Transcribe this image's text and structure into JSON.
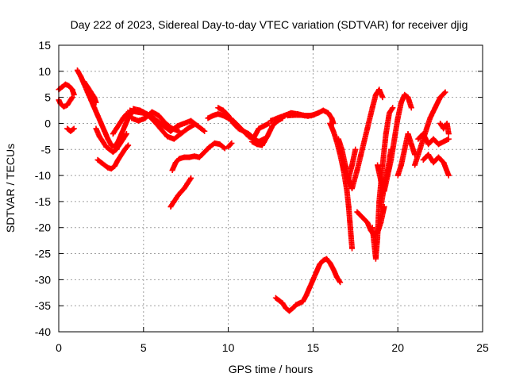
{
  "chart_data": {
    "type": "scatter",
    "title": "Day 222 of 2023, Sidereal Day-to-day VTEC variation (SDTVAR) for receiver djig",
    "xlabel": "GPS time / hours",
    "ylabel": "SDTVAR / TECUs",
    "xlim": [
      0,
      25
    ],
    "ylim": [
      -40,
      15
    ],
    "xticks": [
      0,
      5,
      10,
      15,
      20,
      25
    ],
    "yticks": [
      15,
      10,
      5,
      0,
      -5,
      -10,
      -15,
      -20,
      -25,
      -30,
      -35,
      -40
    ],
    "grid": true,
    "marker": "+",
    "color": "#ff0000",
    "series": [
      {
        "points": [
          [
            0.0,
            6.5
          ],
          [
            0.2,
            7.0
          ],
          [
            0.4,
            7.5
          ],
          [
            0.6,
            7.2
          ],
          [
            0.8,
            6.5
          ],
          [
            0.9,
            5.5
          ]
        ]
      },
      {
        "points": [
          [
            0.0,
            4.5
          ],
          [
            0.1,
            3.8
          ],
          [
            0.3,
            3.2
          ],
          [
            0.5,
            3.5
          ],
          [
            0.7,
            4.5
          ],
          [
            0.8,
            5.0
          ]
        ]
      },
      {
        "points": [
          [
            0.5,
            -1.0
          ],
          [
            0.7,
            -1.5
          ],
          [
            0.9,
            -1.0
          ]
        ]
      },
      {
        "points": [
          [
            1.1,
            10.2
          ],
          [
            1.3,
            9.0
          ],
          [
            1.5,
            7.5
          ],
          [
            1.7,
            6.0
          ],
          [
            1.9,
            4.5
          ],
          [
            2.1,
            3.0
          ],
          [
            2.3,
            1.5
          ],
          [
            2.5,
            0.0
          ],
          [
            2.7,
            -1.5
          ],
          [
            2.9,
            -3.0
          ],
          [
            3.1,
            -4.2
          ],
          [
            3.3,
            -4.5
          ],
          [
            3.5,
            -3.5
          ],
          [
            3.7,
            -2.0
          ],
          [
            3.9,
            -0.5
          ],
          [
            4.1,
            1.0
          ],
          [
            4.3,
            2.0
          ]
        ]
      },
      {
        "points": [
          [
            1.5,
            8.0
          ],
          [
            1.7,
            7.0
          ],
          [
            1.9,
            6.0
          ],
          [
            2.1,
            5.0
          ],
          [
            2.2,
            4.0
          ]
        ]
      },
      {
        "points": [
          [
            2.2,
            -1.0
          ],
          [
            2.4,
            -2.5
          ],
          [
            2.6,
            -3.5
          ],
          [
            2.8,
            -4.5
          ],
          [
            3.0,
            -5.0
          ],
          [
            3.2,
            -5.5
          ],
          [
            3.4,
            -5.0
          ],
          [
            3.6,
            -4.0
          ],
          [
            3.8,
            -3.0
          ],
          [
            4.0,
            -2.0
          ]
        ]
      },
      {
        "points": [
          [
            2.3,
            -7.0
          ],
          [
            2.5,
            -7.5
          ],
          [
            2.7,
            -8.0
          ],
          [
            2.9,
            -8.5
          ],
          [
            3.1,
            -8.7
          ],
          [
            3.3,
            -8.2
          ],
          [
            3.5,
            -7.0
          ],
          [
            3.7,
            -6.0
          ],
          [
            3.9,
            -5.0
          ],
          [
            4.1,
            -4.2
          ]
        ]
      },
      {
        "points": [
          [
            3.2,
            -2.0
          ],
          [
            3.4,
            -1.0
          ],
          [
            3.6,
            0.0
          ],
          [
            3.8,
            1.0
          ],
          [
            4.0,
            1.8
          ],
          [
            4.2,
            2.0
          ]
        ]
      },
      {
        "points": [
          [
            4.2,
            2.5
          ],
          [
            4.6,
            2.2
          ],
          [
            5.0,
            2.0
          ],
          [
            5.4,
            1.5
          ],
          [
            5.8,
            0.5
          ],
          [
            6.2,
            -0.5
          ],
          [
            6.6,
            -1.5
          ],
          [
            7.0,
            -0.5
          ],
          [
            7.4,
            0.0
          ],
          [
            7.8,
            0.5
          ],
          [
            8.2,
            -0.5
          ],
          [
            8.6,
            -1.5
          ]
        ]
      },
      {
        "points": [
          [
            4.4,
            2.8
          ],
          [
            4.8,
            2.5
          ],
          [
            5.2,
            1.8
          ],
          [
            5.6,
            0.5
          ],
          [
            6.0,
            -1.0
          ],
          [
            6.4,
            -2.5
          ],
          [
            6.8,
            -3.0
          ],
          [
            7.2,
            -2.0
          ],
          [
            7.6,
            -1.0
          ],
          [
            8.0,
            -0.2
          ]
        ]
      },
      {
        "points": [
          [
            4.3,
            1.0
          ],
          [
            4.7,
            0.5
          ],
          [
            5.1,
            1.0
          ],
          [
            5.5,
            2.2
          ],
          [
            5.9,
            1.5
          ],
          [
            6.3,
            0.0
          ],
          [
            6.7,
            -1.0
          ],
          [
            7.1,
            -1.5
          ]
        ]
      },
      {
        "points": [
          [
            6.6,
            -16.0
          ],
          [
            6.8,
            -15.0
          ],
          [
            7.0,
            -14.0
          ],
          [
            7.2,
            -13.2
          ],
          [
            7.4,
            -12.5
          ],
          [
            7.6,
            -11.5
          ],
          [
            7.8,
            -10.5
          ]
        ]
      },
      {
        "points": [
          [
            6.7,
            -9.0
          ],
          [
            6.9,
            -7.5
          ],
          [
            7.1,
            -6.8
          ],
          [
            7.4,
            -6.5
          ],
          [
            7.7,
            -6.5
          ],
          [
            8.0,
            -6.3
          ],
          [
            8.3,
            -6.5
          ],
          [
            8.6,
            -5.5
          ],
          [
            8.9,
            -4.5
          ],
          [
            9.2,
            -3.8
          ],
          [
            9.5,
            -4.0
          ],
          [
            9.8,
            -4.8
          ]
        ]
      },
      {
        "points": [
          [
            8.8,
            1.0
          ],
          [
            9.1,
            1.5
          ],
          [
            9.4,
            1.8
          ],
          [
            9.7,
            1.5
          ],
          [
            10.0,
            1.0
          ],
          [
            10.3,
            0.5
          ],
          [
            10.6,
            -0.5
          ],
          [
            10.9,
            -1.5
          ],
          [
            11.2,
            -2.5
          ],
          [
            11.5,
            -3.0
          ],
          [
            11.8,
            -3.5
          ],
          [
            12.1,
            -3.0
          ]
        ]
      },
      {
        "points": [
          [
            9.4,
            3.0
          ],
          [
            9.7,
            2.5
          ],
          [
            10.0,
            1.5
          ],
          [
            10.3,
            0.0
          ],
          [
            10.6,
            -1.0
          ],
          [
            10.9,
            -1.5
          ],
          [
            11.2,
            -2.0
          ],
          [
            11.5,
            -2.8
          ],
          [
            11.8,
            -1.0
          ],
          [
            12.1,
            -0.5
          ],
          [
            12.4,
            0.0
          ]
        ]
      },
      {
        "points": [
          [
            10.0,
            -4.5
          ],
          [
            10.2,
            -3.8
          ]
        ]
      },
      {
        "points": [
          [
            11.4,
            -3.5
          ],
          [
            11.7,
            -4.0
          ],
          [
            12.0,
            -4.2
          ],
          [
            12.3,
            -2.5
          ],
          [
            12.6,
            -0.5
          ],
          [
            12.9,
            0.5
          ],
          [
            13.2,
            1.0
          ]
        ]
      },
      {
        "points": [
          [
            12.5,
            0.5
          ],
          [
            12.9,
            1.0
          ],
          [
            13.3,
            1.5
          ],
          [
            13.7,
            2.0
          ],
          [
            14.1,
            1.8
          ],
          [
            14.5,
            1.5
          ],
          [
            14.9,
            1.5
          ],
          [
            15.3,
            2.0
          ],
          [
            15.6,
            2.5
          ],
          [
            15.9,
            2.0
          ],
          [
            16.1,
            1.0
          ],
          [
            16.2,
            0.0
          ]
        ]
      },
      {
        "points": [
          [
            13.5,
            1.5
          ],
          [
            13.9,
            1.6
          ],
          [
            14.3,
            1.6
          ],
          [
            14.7,
            1.4
          ],
          [
            15.1,
            1.7
          ]
        ]
      },
      {
        "points": [
          [
            12.8,
            -33.5
          ],
          [
            13.0,
            -34.0
          ],
          [
            13.2,
            -34.5
          ],
          [
            13.4,
            -35.5
          ],
          [
            13.6,
            -36.0
          ],
          [
            13.8,
            -35.5
          ],
          [
            14.0,
            -34.8
          ],
          [
            14.2,
            -34.5
          ],
          [
            14.4,
            -34.2
          ],
          [
            14.6,
            -33.0
          ],
          [
            14.8,
            -31.5
          ],
          [
            15.0,
            -30.0
          ],
          [
            15.2,
            -28.5
          ],
          [
            15.4,
            -27.0
          ],
          [
            15.6,
            -26.3
          ],
          [
            15.8,
            -26.0
          ],
          [
            16.0,
            -26.8
          ],
          [
            16.2,
            -28.0
          ],
          [
            16.4,
            -29.5
          ],
          [
            16.6,
            -30.5
          ]
        ]
      },
      {
        "points": [
          [
            16.0,
            0.0
          ],
          [
            16.2,
            -1.5
          ],
          [
            16.4,
            -3.5
          ],
          [
            16.6,
            -6.0
          ],
          [
            16.8,
            -9.0
          ],
          [
            17.0,
            -13.0
          ],
          [
            17.1,
            -16.0
          ],
          [
            17.2,
            -20.0
          ],
          [
            17.3,
            -24.0
          ]
        ]
      },
      {
        "points": [
          [
            16.5,
            -3.0
          ],
          [
            16.7,
            -5.0
          ],
          [
            16.9,
            -8.0
          ],
          [
            17.1,
            -10.5
          ],
          [
            17.3,
            -8.0
          ],
          [
            17.5,
            -5.0
          ]
        ]
      },
      {
        "points": [
          [
            17.0,
            -10.0
          ],
          [
            17.3,
            -12.5
          ],
          [
            17.6,
            -9.0
          ],
          [
            17.9,
            -5.0
          ],
          [
            18.2,
            -1.0
          ],
          [
            18.5,
            3.0
          ],
          [
            18.7,
            5.5
          ],
          [
            18.9,
            6.5
          ],
          [
            19.1,
            5.0
          ]
        ]
      },
      {
        "points": [
          [
            17.6,
            -17.0
          ],
          [
            17.9,
            -18.0
          ],
          [
            18.2,
            -19.0
          ],
          [
            18.4,
            -20.5
          ],
          [
            18.6,
            -21.5
          ],
          [
            18.8,
            -21.0
          ],
          [
            19.0,
            -19.0
          ],
          [
            19.2,
            -16.0
          ]
        ]
      },
      {
        "points": [
          [
            18.5,
            -20.0
          ],
          [
            18.7,
            -26.0
          ],
          [
            18.8,
            -22.0
          ],
          [
            18.9,
            -15.0
          ],
          [
            19.1,
            -8.0
          ],
          [
            19.3,
            -2.0
          ],
          [
            19.5,
            2.0
          ],
          [
            19.7,
            3.0
          ]
        ]
      },
      {
        "points": [
          [
            18.8,
            -8.0
          ],
          [
            19.0,
            -11.0
          ],
          [
            19.2,
            -13.0
          ],
          [
            19.4,
            -10.0
          ],
          [
            19.6,
            -7.0
          ],
          [
            19.8,
            -3.0
          ],
          [
            20.0,
            1.0
          ],
          [
            20.2,
            4.0
          ],
          [
            20.4,
            5.5
          ],
          [
            20.6,
            5.0
          ],
          [
            20.8,
            3.0
          ]
        ]
      },
      {
        "points": [
          [
            20.0,
            -10.0
          ],
          [
            20.2,
            -8.0
          ],
          [
            20.4,
            -5.0
          ],
          [
            20.6,
            -2.0
          ],
          [
            20.8,
            -4.0
          ],
          [
            21.0,
            -6.0
          ]
        ]
      },
      {
        "points": [
          [
            19.0,
            -16.0
          ],
          [
            19.2,
            -12.0
          ],
          [
            19.4,
            -9.0
          ],
          [
            19.6,
            -5.0
          ]
        ]
      },
      {
        "points": [
          [
            21.0,
            -8.0
          ],
          [
            21.3,
            -5.0
          ],
          [
            21.6,
            -2.0
          ],
          [
            21.9,
            1.0
          ],
          [
            22.2,
            3.0
          ],
          [
            22.5,
            5.0
          ],
          [
            22.8,
            6.0
          ]
        ]
      },
      {
        "points": [
          [
            21.2,
            -3.0
          ],
          [
            21.5,
            -2.0
          ],
          [
            21.8,
            -4.0
          ],
          [
            22.1,
            -3.0
          ],
          [
            22.4,
            -4.0
          ],
          [
            22.7,
            -3.5
          ],
          [
            23.0,
            -3.0
          ]
        ]
      },
      {
        "points": [
          [
            21.5,
            -7.0
          ],
          [
            21.8,
            -6.0
          ],
          [
            22.1,
            -7.5
          ],
          [
            22.4,
            -6.5
          ],
          [
            22.7,
            -7.5
          ],
          [
            23.0,
            -10.0
          ]
        ]
      },
      {
        "points": [
          [
            22.5,
            0.0
          ],
          [
            22.7,
            -1.0
          ],
          [
            22.9,
            0.0
          ],
          [
            23.0,
            -2.0
          ]
        ]
      }
    ]
  }
}
